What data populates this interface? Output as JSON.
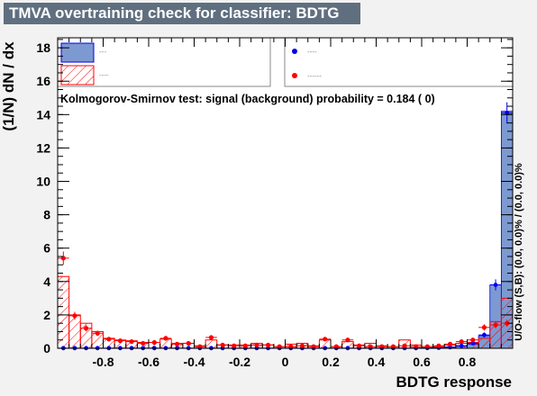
{
  "chart_data": {
    "type": "bar",
    "title": "TMVA overtraining check for classifier: BDTG",
    "xlabel": "BDTG response",
    "ylabel": "(1/N) dN / dx",
    "overflow_label": "U/O-flow (S,B): (0.0, 0.0)% / (0.0, 0.0)%",
    "ks_text": "Kolmogorov-Smirnov test: signal (background) probability = 0.184 (    0)",
    "xlim": [
      -1,
      1
    ],
    "ylim": [
      0,
      18.6
    ],
    "xticks": [
      "-0.8",
      "-0.6",
      "-0.4",
      "-0.2",
      "0",
      "0.2",
      "0.4",
      "0.6",
      "0.8"
    ],
    "xtick_values": [
      -0.8,
      -0.6,
      -0.4,
      -0.2,
      0,
      0.2,
      0.4,
      0.6,
      0.8
    ],
    "yticks": [
      "0",
      "2",
      "4",
      "6",
      "8",
      "10",
      "12",
      "14",
      "16",
      "18"
    ],
    "ytick_values": [
      0,
      2,
      4,
      6,
      8,
      10,
      12,
      14,
      16,
      18
    ],
    "bin_width": 0.05,
    "x": [
      -0.975,
      -0.925,
      -0.875,
      -0.825,
      -0.775,
      -0.725,
      -0.675,
      -0.625,
      -0.575,
      -0.525,
      -0.475,
      -0.425,
      -0.375,
      -0.325,
      -0.275,
      -0.225,
      -0.175,
      -0.125,
      -0.075,
      -0.025,
      0.025,
      0.075,
      0.125,
      0.175,
      0.225,
      0.275,
      0.325,
      0.375,
      0.425,
      0.475,
      0.525,
      0.575,
      0.625,
      0.675,
      0.725,
      0.775,
      0.825,
      0.875,
      0.925,
      0.975
    ],
    "series": [
      {
        "legend_label": "---",
        "style": "signal-train-filled",
        "color": "#7d99d1",
        "line_color": "#0000ee",
        "values": [
          0.01,
          0.01,
          0.01,
          0.01,
          0.01,
          0.01,
          0.01,
          0.01,
          0.01,
          0.01,
          0.01,
          0.01,
          0.01,
          0.01,
          0.01,
          0.01,
          0.01,
          0.01,
          0.01,
          0.01,
          0.01,
          0.01,
          0.01,
          0.01,
          0.01,
          0.01,
          0.01,
          0.01,
          0.01,
          0.01,
          0.01,
          0.02,
          0.03,
          0.05,
          0.08,
          0.12,
          0.25,
          0.75,
          3.8,
          14.2
        ]
      },
      {
        "legend_label": "----",
        "style": "background-train-hatched",
        "color": "#ff0000",
        "values": [
          4.3,
          2.0,
          1.5,
          1.0,
          0.6,
          0.5,
          0.45,
          0.35,
          0.35,
          0.55,
          0.3,
          0.3,
          0.15,
          0.5,
          0.2,
          0.2,
          0.2,
          0.3,
          0.2,
          0.1,
          0.25,
          0.3,
          0.15,
          0.5,
          0.1,
          0.4,
          0.2,
          0.3,
          0.15,
          0.1,
          0.5,
          0.2,
          0.1,
          0.1,
          0.2,
          0.3,
          0.35,
          0.6,
          1.6,
          3.0
        ]
      },
      {
        "legend_label": "----",
        "style": "signal-test-points",
        "color": "#0000ee",
        "values": [
          0.01,
          0.01,
          0.01,
          0.01,
          0.01,
          0.01,
          0.01,
          0.01,
          0.01,
          0.01,
          0.01,
          0.01,
          0.01,
          0.01,
          0.01,
          0.01,
          0.01,
          0.01,
          0.01,
          0.01,
          0.01,
          0.01,
          0.01,
          0.01,
          0.01,
          0.01,
          0.01,
          0.01,
          0.01,
          0.01,
          0.01,
          0.01,
          0.02,
          0.03,
          0.06,
          0.15,
          0.3,
          0.8,
          3.8,
          14.1
        ]
      },
      {
        "legend_label": "------",
        "style": "background-test-points",
        "color": "#ff0000",
        "values": [
          5.4,
          1.95,
          1.2,
          0.9,
          0.55,
          0.45,
          0.4,
          0.3,
          0.35,
          0.6,
          0.25,
          0.3,
          0.1,
          0.65,
          0.2,
          0.15,
          0.15,
          0.2,
          0.2,
          0.1,
          0.1,
          0.15,
          0.1,
          0.55,
          0.1,
          0.5,
          0.15,
          0.1,
          0.1,
          0.1,
          0.15,
          0.1,
          0.1,
          0.15,
          0.25,
          0.4,
          0.5,
          1.25,
          1.4,
          1.5
        ]
      }
    ]
  }
}
